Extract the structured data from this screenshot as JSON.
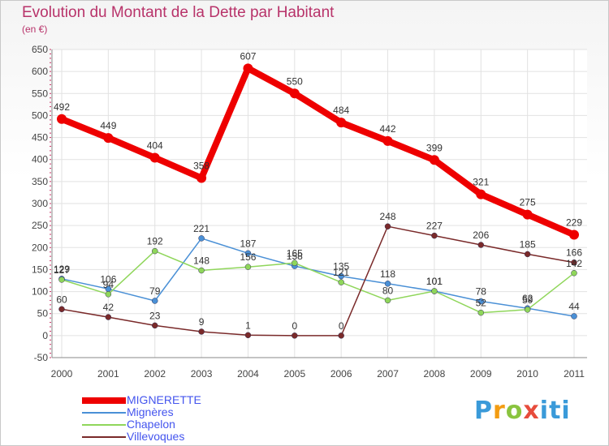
{
  "chart_data": {
    "type": "line",
    "title": "Evolution du Montant de la Dette par Habitant",
    "subtitle": "(en €)",
    "x": [
      "2000",
      "2001",
      "2002",
      "2003",
      "2004",
      "2005",
      "2006",
      "2007",
      "2008",
      "2009",
      "2010",
      "2011"
    ],
    "ylim": [
      -50,
      650
    ],
    "yticks": [
      -50,
      0,
      50,
      100,
      150,
      200,
      250,
      300,
      350,
      400,
      450,
      500,
      550,
      600,
      650
    ],
    "grid": true,
    "legend_position": "bottom-left",
    "series": [
      {
        "name": "MIGNERETTE",
        "color": "#ee0000",
        "values": [
          492,
          449,
          404,
          358,
          607,
          550,
          484,
          442,
          399,
          321,
          275,
          229
        ]
      },
      {
        "name": "Mignères",
        "color": "#4a90d6",
        "values": [
          129,
          106,
          79,
          221,
          187,
          158,
          135,
          118,
          101,
          78,
          62,
          44
        ]
      },
      {
        "name": "Chapelon",
        "color": "#8fd65a",
        "values": [
          127,
          94,
          192,
          148,
          156,
          165,
          121,
          80,
          101,
          52,
          59,
          142
        ]
      },
      {
        "name": "Villevoques",
        "color": "#7a2a2a",
        "values": [
          60,
          42,
          23,
          9,
          1,
          0,
          0,
          248,
          227,
          206,
          185,
          166
        ]
      }
    ]
  },
  "legend": {
    "items": [
      {
        "label": "MIGNERETTE",
        "color": "#ee0000",
        "text_color": "#4455ee"
      },
      {
        "label": "Mignères",
        "color": "#4a90d6",
        "text_color": "#4455ee"
      },
      {
        "label": "Chapelon",
        "color": "#8fd65a",
        "text_color": "#4455ee"
      },
      {
        "label": "Villevoques",
        "color": "#7a2a2a",
        "text_color": "#4455ee"
      }
    ]
  },
  "brand": {
    "logo_text": "Proxiti"
  }
}
